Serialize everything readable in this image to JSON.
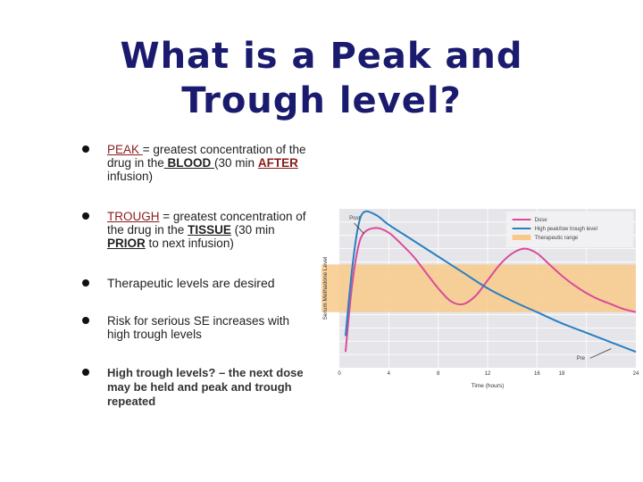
{
  "title": {
    "line1": "What is a Peak and",
    "line2": "Trough level?"
  },
  "bullets": {
    "b1": {
      "term": "PEAK ",
      "t1": "= greatest concentration of the drug in the",
      "blood": " BLOOD ",
      "t2": "(30 min ",
      "after": "AFTER",
      "t3": " infusion)"
    },
    "b2": {
      "term": "TROUGH",
      "t1": " = greatest concentration of the drug in the ",
      "tissue": "TISSUE",
      "t2": " (30 min ",
      "prior": "PRIOR",
      "t3": " to next infusion)"
    },
    "b3": {
      "text": "Therapeutic levels are desired"
    },
    "b4": {
      "text": " Risk for serious SE increases with high trough levels"
    },
    "b5": {
      "text": "High trough levels? – the next dose may be held and peak and trough repeated"
    }
  },
  "chart_data": {
    "type": "line",
    "xlabel": "Time (hours)",
    "ylabel": "Serum Methadone Level",
    "xlim": [
      0,
      24
    ],
    "x_ticks": [
      "0",
      "4",
      "8",
      "12",
      "16",
      "18",
      "24"
    ],
    "grid": true,
    "legend_position": "top-right",
    "legend": [
      "Dose",
      "High peak/low trough level",
      "Therapeutic range"
    ],
    "annotations": [
      "Post",
      "Pre"
    ],
    "therapeutic_range": [
      0.35,
      0.65
    ],
    "series": [
      {
        "name": "Dose",
        "x": [
          0.5,
          1,
          1.5,
          2,
          3,
          4,
          5,
          6,
          7,
          8,
          9,
          10,
          11,
          12,
          13,
          14,
          15,
          16,
          17,
          18,
          19,
          20,
          21,
          22,
          23,
          24
        ],
        "y": [
          0.1,
          0.5,
          0.75,
          0.85,
          0.88,
          0.85,
          0.78,
          0.7,
          0.6,
          0.5,
          0.42,
          0.4,
          0.45,
          0.55,
          0.65,
          0.72,
          0.75,
          0.72,
          0.65,
          0.58,
          0.52,
          0.47,
          0.43,
          0.4,
          0.37,
          0.35
        ]
      },
      {
        "name": "High peak/low trough level",
        "x": [
          0.5,
          1,
          1.5,
          2,
          3,
          4,
          6,
          8,
          10,
          12,
          14,
          16,
          18,
          20,
          22,
          24
        ],
        "y": [
          0.2,
          0.6,
          0.88,
          0.98,
          0.96,
          0.9,
          0.8,
          0.7,
          0.6,
          0.5,
          0.42,
          0.35,
          0.28,
          0.22,
          0.16,
          0.1
        ]
      }
    ],
    "colors": {
      "dose": "#d94c9a",
      "high": "#2a7fc4",
      "range": "#f8c98a",
      "bg": "#e6e6ea",
      "grid": "#ffffff"
    }
  }
}
